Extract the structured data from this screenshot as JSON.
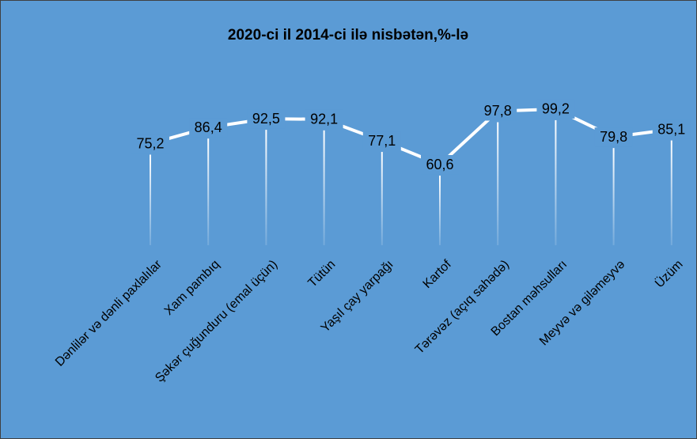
{
  "chart_data": {
    "type": "line",
    "title": "2020-ci il 2014-ci ilə nisbətən,%-lə",
    "categories": [
      "Dənlilər və dənli paxlalılar",
      "Xam pambıq",
      "Şəkər çuğunduru (emal üçün)",
      "Tütün",
      "Yaşıl çay yarpağı",
      "Kartof",
      "Tərəvəz (açıq sahədə)",
      "Bostan məhsulları",
      "Meyvə və giləmeyvə",
      "Üzüm"
    ],
    "series": [
      {
        "name": "2020-ci il 2014-ci ilə nisbətən",
        "color": "#ffffff",
        "values": [
          75.2,
          86.4,
          92.5,
          92.1,
          77.1,
          60.6,
          97.8,
          99.2,
          79.8,
          85.1
        ],
        "value_labels": [
          "75,2",
          "86,4",
          "92,5",
          "92,1",
          "77,1",
          "60,6",
          "97,8",
          "99,2",
          "79,8",
          "85,1"
        ]
      }
    ],
    "background": "#5b9bd5",
    "drop_lines": true
  }
}
